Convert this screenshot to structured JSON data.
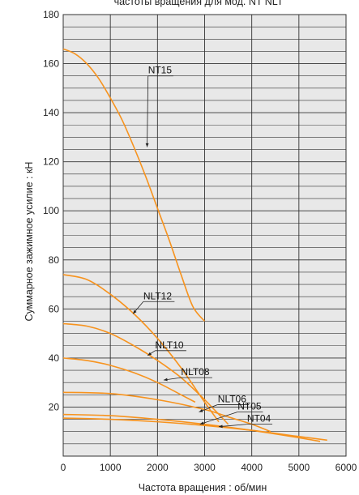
{
  "chart_data": {
    "type": "line",
    "title": "частоты вращения для мод. NT NLT",
    "xlabel": "Частота вращения : об/мин",
    "ylabel": "Суммарное зажимное усилие : кН",
    "xlim": [
      0,
      6000
    ],
    "ylim": [
      0,
      180
    ],
    "x_ticks": [
      "0",
      "1000",
      "2000",
      "3000",
      "4000",
      "5000",
      "6000"
    ],
    "y_ticks": [
      "20",
      "40",
      "60",
      "80",
      "100",
      "120",
      "140",
      "160",
      "180"
    ],
    "grid": true,
    "line_color": "#f7931e",
    "series": [
      {
        "name": "NT15",
        "x": [
          0,
          250,
          500,
          750,
          1000,
          1250,
          1500,
          1750,
          2000,
          2250,
          2500,
          2750,
          3000
        ],
        "y": [
          166,
          164,
          160,
          154,
          146,
          137,
          126,
          114,
          101,
          88,
          74,
          61,
          55
        ],
        "label_at": [
          1800,
          155
        ],
        "pointer_to": [
          1780,
          126
        ]
      },
      {
        "name": "NLT12",
        "x": [
          0,
          500,
          1000,
          1500,
          2000,
          2500,
          3000,
          3300
        ],
        "y": [
          74,
          72,
          66,
          58,
          48,
          36,
          22,
          14
        ],
        "label_at": [
          1700,
          63
        ],
        "pointer_to": [
          1480,
          58
        ]
      },
      {
        "name": "NLT10",
        "x": [
          0,
          500,
          1000,
          1500,
          2000,
          2500,
          3000,
          3500
        ],
        "y": [
          54,
          53,
          50,
          45,
          39,
          32,
          23,
          13
        ],
        "label_at": [
          1950,
          43
        ],
        "pointer_to": [
          1790,
          41
        ]
      },
      {
        "name": "NLT08",
        "x": [
          0,
          500,
          1000,
          1500,
          2000,
          2500,
          2800
        ],
        "y": [
          40,
          39,
          37,
          34,
          30,
          25,
          22
        ],
        "label_at": [
          2500,
          32
        ],
        "pointer_to": [
          2130,
          31
        ]
      },
      {
        "name": "NLT06",
        "x": [
          0,
          1000,
          2000,
          3000,
          3500,
          4000,
          4400
        ],
        "y": [
          26,
          25.5,
          23,
          19,
          16,
          13,
          10
        ],
        "label_at": [
          3280,
          21
        ],
        "pointer_to": [
          2880,
          18
        ]
      },
      {
        "name": "NT05",
        "x": [
          0,
          1000,
          2000,
          3000,
          4000,
          5000,
          5450
        ],
        "y": [
          17,
          16.5,
          15,
          13,
          10.5,
          7.5,
          6
        ],
        "label_at": [
          3700,
          18
        ],
        "pointer_to": [
          2900,
          13
        ]
      },
      {
        "name": "NT04",
        "x": [
          0,
          1000,
          2000,
          3000,
          4000,
          5000,
          5600
        ],
        "y": [
          15.5,
          15,
          14,
          12.5,
          10.5,
          8,
          6.5
        ],
        "label_at": [
          3900,
          13
        ],
        "pointer_to": [
          3300,
          12
        ]
      }
    ]
  }
}
